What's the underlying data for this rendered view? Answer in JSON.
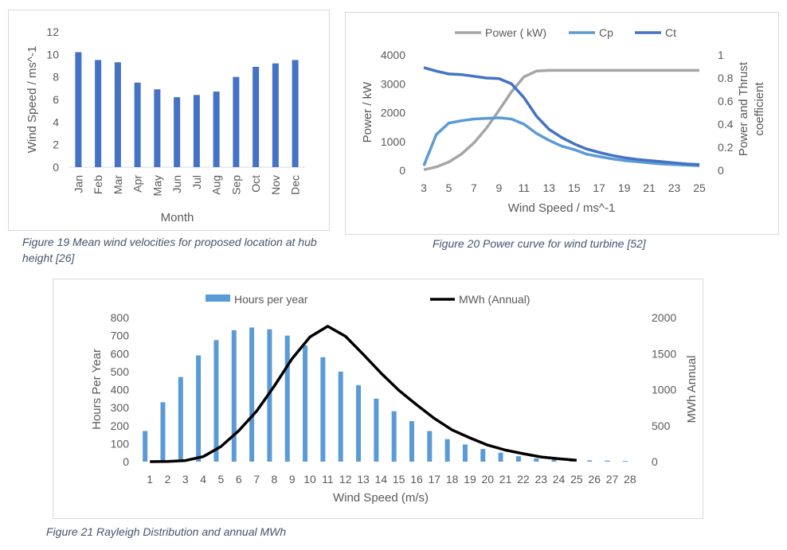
{
  "colors": {
    "bar_dark": "#4472c4",
    "bar_light": "#5b9bd5",
    "power_gray": "#a5a5a5",
    "cp_light": "#5b9bd5",
    "ct_dark": "#4472c4",
    "mwh_black": "#000000",
    "text": "#595959",
    "caption": "#44546a"
  },
  "captions": {
    "fig19": "Figure 19 Mean wind velocities for proposed location at hub height [26]",
    "fig20": "Figure 20 Power curve for wind turbine [52]",
    "fig21": "Figure 21 Rayleigh Distribution and annual MWh"
  },
  "chart_data": [
    {
      "type": "bar",
      "title": "",
      "xlabel": "Month",
      "ylabel": "Wind Speed / ms^-1",
      "ylim": [
        0,
        12
      ],
      "yticks": [
        0,
        2,
        4,
        6,
        8,
        10,
        12
      ],
      "categories": [
        "Jan",
        "Feb",
        "Mar",
        "Apr",
        "May",
        "Jun",
        "Jul",
        "Aug",
        "Sep",
        "Oct",
        "Nov",
        "Dec"
      ],
      "values": [
        10.2,
        9.5,
        9.3,
        7.5,
        6.9,
        6.2,
        6.4,
        6.7,
        8.0,
        8.9,
        9.2,
        9.5
      ],
      "color": "#4472c4",
      "grid": false
    },
    {
      "type": "line",
      "title": "",
      "xlabel": "Wind Speed / ms^-1",
      "ylabel": "Power / kW",
      "y2label": "Power and Thrust coefficient",
      "xlim": [
        3,
        25
      ],
      "xticks": [
        3,
        5,
        7,
        9,
        11,
        13,
        15,
        17,
        19,
        21,
        23,
        25
      ],
      "ylim": [
        0,
        4000
      ],
      "yticks": [
        0,
        1000,
        2000,
        3000,
        4000
      ],
      "y2lim": [
        0,
        1
      ],
      "y2ticks": [
        "0",
        "0.2",
        "0.4",
        "0.6",
        "0.8",
        "1"
      ],
      "legend": "top",
      "x": [
        3,
        4,
        5,
        6,
        7,
        8,
        9,
        10,
        11,
        12,
        13,
        14,
        15,
        16,
        17,
        18,
        19,
        20,
        21,
        22,
        23,
        24,
        25
      ],
      "series": [
        {
          "name": "Power ( kW)",
          "axis": "left",
          "color": "#a5a5a5",
          "values": [
            20,
            120,
            290,
            560,
            950,
            1460,
            2080,
            2720,
            3240,
            3440,
            3465,
            3465,
            3465,
            3465,
            3465,
            3465,
            3465,
            3465,
            3465,
            3465,
            3465,
            3465,
            3465
          ]
        },
        {
          "name": "Cp",
          "axis": "right",
          "color": "#5b9bd5",
          "values": [
            0.04,
            0.31,
            0.41,
            0.43,
            0.445,
            0.45,
            0.455,
            0.445,
            0.4,
            0.32,
            0.26,
            0.21,
            0.18,
            0.14,
            0.12,
            0.1,
            0.085,
            0.075,
            0.065,
            0.055,
            0.05,
            0.045,
            0.04
          ]
        },
        {
          "name": "Ct",
          "axis": "right",
          "color": "#4472c4",
          "values": [
            0.89,
            0.86,
            0.835,
            0.83,
            0.815,
            0.8,
            0.795,
            0.75,
            0.63,
            0.47,
            0.355,
            0.285,
            0.23,
            0.185,
            0.155,
            0.13,
            0.11,
            0.095,
            0.085,
            0.075,
            0.065,
            0.055,
            0.05
          ]
        }
      ],
      "grid": false
    },
    {
      "type": "bar",
      "title": "",
      "xlabel": "Wind Speed (m/s)",
      "ylabel": "Hours Per Year",
      "y2label": "MWh Annual",
      "ylim": [
        0,
        800
      ],
      "yticks": [
        0,
        100,
        200,
        300,
        400,
        500,
        600,
        700,
        800
      ],
      "y2lim": [
        0,
        2000
      ],
      "y2ticks": [
        0,
        500,
        1000,
        1500,
        2000
      ],
      "legend": "top",
      "categories": [
        "1",
        "2",
        "3",
        "4",
        "5",
        "6",
        "7",
        "8",
        "9",
        "10",
        "11",
        "12",
        "13",
        "14",
        "15",
        "16",
        "17",
        "18",
        "19",
        "20",
        "21",
        "22",
        "23",
        "24",
        "25",
        "26",
        "27",
        "28"
      ],
      "series": [
        {
          "name": "Hours per year",
          "kind": "bar",
          "axis": "left",
          "color": "#5b9bd5",
          "values": [
            170,
            330,
            470,
            590,
            675,
            730,
            745,
            735,
            700,
            645,
            580,
            500,
            425,
            350,
            280,
            225,
            170,
            125,
            95,
            70,
            50,
            30,
            18,
            12,
            8,
            7,
            6,
            4
          ]
        },
        {
          "name": "MWh (Annual)",
          "kind": "line",
          "axis": "right",
          "color": "#000000",
          "values": [
            0,
            2,
            15,
            70,
            210,
            430,
            700,
            1050,
            1430,
            1730,
            1880,
            1740,
            1490,
            1230,
            990,
            790,
            600,
            440,
            330,
            230,
            160,
            110,
            65,
            40,
            20,
            null,
            null,
            null
          ]
        }
      ],
      "grid": false
    }
  ]
}
